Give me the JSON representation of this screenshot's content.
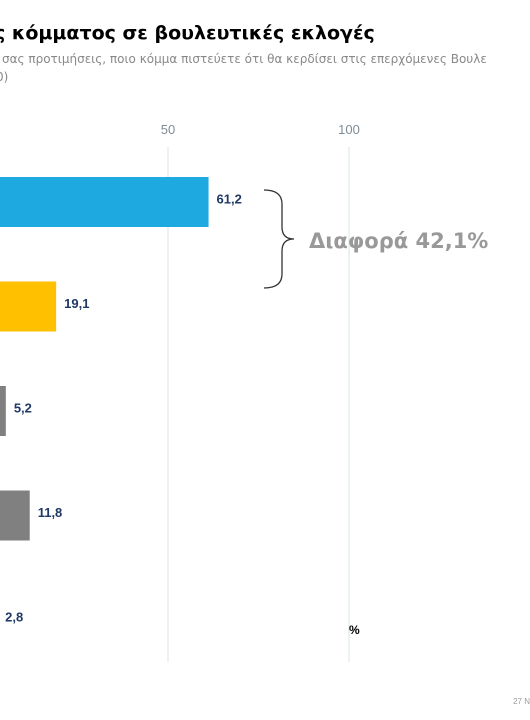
{
  "title": "ς κόμματος σε βουλευτικές εκλογές",
  "subtitle": "σας προτιμήσεις, ποιο κόμμα πιστεύετε ότι θα κερδίσει στις επερχόμενες Βουλε",
  "subtitle_line2": "0)",
  "footer": "27 Ν",
  "chart_data": {
    "type": "bar",
    "orientation": "horizontal",
    "categories": [
      "",
      "",
      "",
      "",
      ""
    ],
    "values": [
      61.2,
      19.1,
      5.2,
      11.8,
      2.8
    ],
    "value_labels": [
      "61,2",
      "19,1",
      "5,2",
      "11,8",
      "2,8"
    ],
    "bar_colors": [
      "#1fa9e1",
      "#ffc000",
      "#808080",
      "#808080",
      "#808080"
    ],
    "xticks": [
      50,
      100
    ],
    "xtick_labels": [
      "50",
      "100"
    ],
    "unit_label": "%",
    "grid": true,
    "annotation": "Διαφορά 42,1%",
    "label_color": "#1f3864",
    "annotation_color": "#999999"
  }
}
